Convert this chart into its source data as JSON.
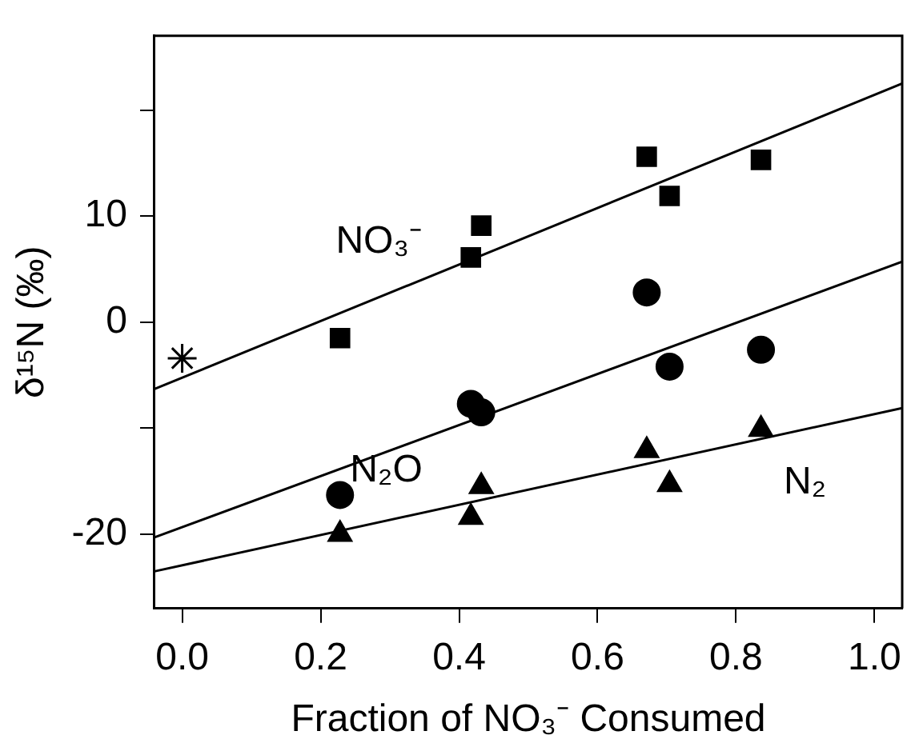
{
  "chart_data": {
    "type": "scatter",
    "xlabel": "Fraction of NO₃⁻ Consumed",
    "ylabel": "δ¹⁵N (‰)",
    "xlim": [
      -0.04,
      1.04
    ],
    "xticks": [
      {
        "value": 0,
        "label": "0.0"
      },
      {
        "value": 0.2,
        "label": "0.2"
      },
      {
        "value": 0.4,
        "label": "0.4"
      },
      {
        "value": 0.6,
        "label": "0.6"
      },
      {
        "value": 0.8,
        "label": "0.8"
      },
      {
        "value": 1,
        "label": "1.0"
      }
    ],
    "ylim": [
      -27,
      27
    ],
    "yticks": [
      {
        "value": 20,
        "label": null
      },
      10,
      0,
      {
        "value": -10,
        "label": null
      },
      -20
    ],
    "grid": false,
    "legend": false,
    "series": [
      {
        "marker": "cross",
        "color": "#000000",
        "x": [
          0
        ],
        "values": [
          -3.4
        ]
      },
      {
        "marker": "square",
        "color": "#000000",
        "x": [
          0.228,
          0.417,
          0.432,
          0.671,
          0.704,
          0.836
        ],
        "values": [
          -1.5,
          6.1,
          9.1,
          15.6,
          11.9,
          15.3
        ]
      },
      {
        "marker": "circle",
        "color": "#000000",
        "x": [
          0.228,
          0.417,
          0.432,
          0.671,
          0.704,
          0.836
        ],
        "values": [
          -16.3,
          -7.7,
          -8.5,
          2.8,
          -4.2,
          -2.6
        ]
      },
      {
        "marker": "triangle",
        "color": "#000000",
        "x": [
          0.228,
          0.417,
          0.432,
          0.671,
          0.704,
          0.836
        ],
        "values": [
          -20.0,
          -18.4,
          -15.5,
          -12.1,
          -15.3,
          -10.1
        ]
      },
      {
        "type": "line",
        "marker": "none",
        "color": "#000000",
        "x": [
          -0.04,
          1.04
        ],
        "values": [
          -6.3,
          22.5
        ]
      },
      {
        "type": "line",
        "marker": "none",
        "color": "#000000",
        "x": [
          -0.04,
          1.04
        ],
        "values": [
          -20.3,
          5.7
        ]
      },
      {
        "type": "line",
        "marker": "none",
        "color": "#000000",
        "x": [
          -0.04,
          1.04
        ],
        "values": [
          -23.5,
          -8.1
        ]
      }
    ],
    "annotations": [
      "NO₃⁻",
      "N₂O",
      "N₂"
    ]
  }
}
